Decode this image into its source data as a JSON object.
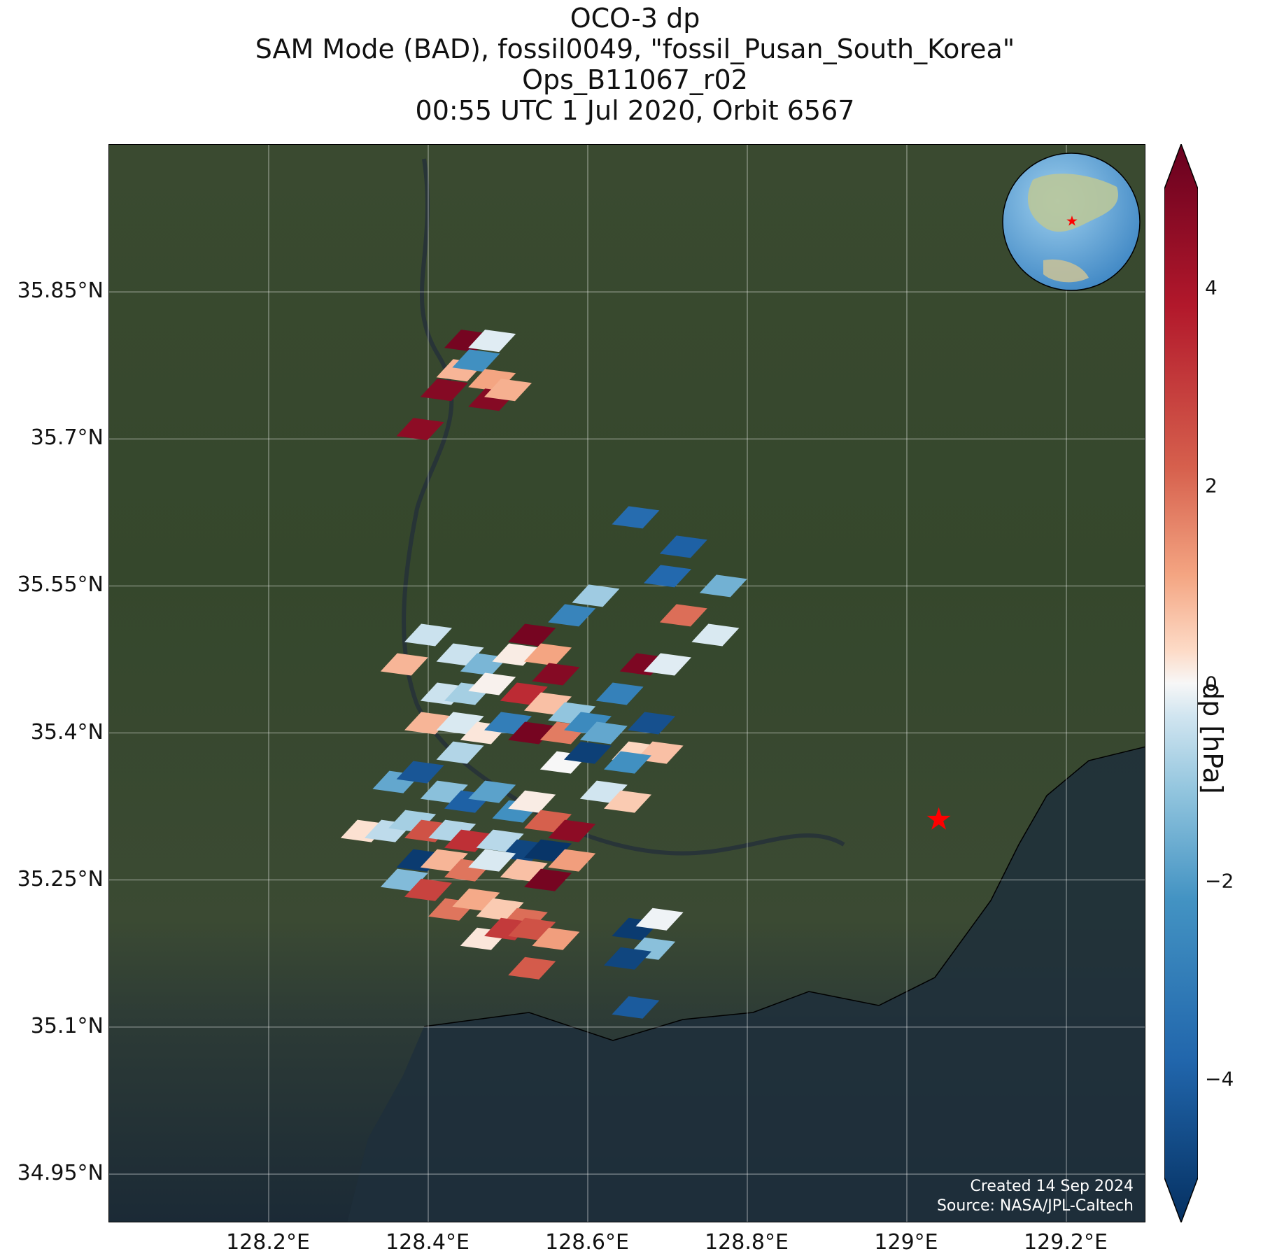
{
  "title": {
    "line1": "OCO-3 dp",
    "line2": "SAM Mode (BAD), fossil0049, \"fossil_Pusan_South_Korea\"",
    "line3": "Ops_B11067_r02",
    "line4": "00:55 UTC 1 Jul 2020, Orbit 6567"
  },
  "map": {
    "lon_range": [
      128.0,
      129.3
    ],
    "lat_range": [
      34.9,
      36.0
    ],
    "lon_ticks": [
      "128.2°E",
      "128.4°E",
      "128.6°E",
      "128.8°E",
      "129°E",
      "129.2°E"
    ],
    "lat_ticks": [
      "35.85°N",
      "35.7°N",
      "35.55°N",
      "35.4°N",
      "35.25°N",
      "35.1°N",
      "34.95°N"
    ],
    "grid": true,
    "target_marker": {
      "lon": 129.04,
      "lat": 35.31,
      "symbol": "red-star"
    },
    "inset_globe": "top-right",
    "credit_line1": "Created 14 Sep 2024",
    "credit_line2": "Source: NASA/JPL-Caltech"
  },
  "colorbar": {
    "label": "dp [hPa]",
    "ticks": [
      "4",
      "2",
      "0",
      "−2",
      "−4"
    ],
    "tick_values": [
      4,
      2,
      0,
      -2,
      -4
    ],
    "range": [
      -5,
      5
    ],
    "colormap": "RdBu_r",
    "extend": "both"
  },
  "chart_data": {
    "type": "scatter",
    "description_units": "lon (°E), lat (°N), dp (hPa)",
    "points": [
      {
        "lon": 128.39,
        "lat": 35.71,
        "dp": 4.5
      },
      {
        "lon": 128.42,
        "lat": 35.75,
        "dp": 4.6
      },
      {
        "lon": 128.44,
        "lat": 35.77,
        "dp": 1.2
      },
      {
        "lon": 128.45,
        "lat": 35.8,
        "dp": 4.8
      },
      {
        "lon": 128.46,
        "lat": 35.78,
        "dp": -2.6
      },
      {
        "lon": 128.48,
        "lat": 35.8,
        "dp": -0.3
      },
      {
        "lon": 128.48,
        "lat": 35.76,
        "dp": 1.5
      },
      {
        "lon": 128.48,
        "lat": 35.74,
        "dp": 4.6
      },
      {
        "lon": 128.5,
        "lat": 35.75,
        "dp": 1.3
      },
      {
        "lon": 128.66,
        "lat": 35.62,
        "dp": -3.8
      },
      {
        "lon": 128.72,
        "lat": 35.59,
        "dp": -4.1
      },
      {
        "lon": 128.7,
        "lat": 35.56,
        "dp": -3.9
      },
      {
        "lon": 128.77,
        "lat": 35.55,
        "dp": -1.9
      },
      {
        "lon": 128.61,
        "lat": 35.54,
        "dp": -1.3
      },
      {
        "lon": 128.58,
        "lat": 35.52,
        "dp": -3.0
      },
      {
        "lon": 128.72,
        "lat": 35.52,
        "dp": 2.3
      },
      {
        "lon": 128.76,
        "lat": 35.5,
        "dp": -0.4
      },
      {
        "lon": 128.67,
        "lat": 35.47,
        "dp": 4.7
      },
      {
        "lon": 128.7,
        "lat": 35.47,
        "dp": -0.3
      },
      {
        "lon": 128.64,
        "lat": 35.44,
        "dp": -3.1
      },
      {
        "lon": 128.68,
        "lat": 35.41,
        "dp": -4.4
      },
      {
        "lon": 128.4,
        "lat": 35.5,
        "dp": -0.6
      },
      {
        "lon": 128.37,
        "lat": 35.47,
        "dp": 1.2
      },
      {
        "lon": 128.44,
        "lat": 35.48,
        "dp": -0.6
      },
      {
        "lon": 128.47,
        "lat": 35.47,
        "dp": -1.8
      },
      {
        "lon": 128.51,
        "lat": 35.48,
        "dp": 0.2
      },
      {
        "lon": 128.53,
        "lat": 35.5,
        "dp": 4.8
      },
      {
        "lon": 128.55,
        "lat": 35.48,
        "dp": 1.5
      },
      {
        "lon": 128.56,
        "lat": 35.46,
        "dp": 4.6
      },
      {
        "lon": 128.42,
        "lat": 35.44,
        "dp": -0.6
      },
      {
        "lon": 128.45,
        "lat": 35.44,
        "dp": -1.2
      },
      {
        "lon": 128.48,
        "lat": 35.45,
        "dp": 0.1
      },
      {
        "lon": 128.52,
        "lat": 35.44,
        "dp": 3.6
      },
      {
        "lon": 128.55,
        "lat": 35.43,
        "dp": 1.0
      },
      {
        "lon": 128.58,
        "lat": 35.42,
        "dp": -1.5
      },
      {
        "lon": 128.4,
        "lat": 35.41,
        "dp": 1.2
      },
      {
        "lon": 128.44,
        "lat": 35.41,
        "dp": -0.4
      },
      {
        "lon": 128.47,
        "lat": 35.4,
        "dp": 0.3
      },
      {
        "lon": 128.5,
        "lat": 35.41,
        "dp": -3.2
      },
      {
        "lon": 128.53,
        "lat": 35.4,
        "dp": 4.8
      },
      {
        "lon": 128.57,
        "lat": 35.4,
        "dp": 2.1
      },
      {
        "lon": 128.6,
        "lat": 35.41,
        "dp": -2.8
      },
      {
        "lon": 128.62,
        "lat": 35.4,
        "dp": -2.1
      },
      {
        "lon": 128.57,
        "lat": 35.37,
        "dp": 0.0
      },
      {
        "lon": 128.6,
        "lat": 35.38,
        "dp": -4.7
      },
      {
        "lon": 128.66,
        "lat": 35.38,
        "dp": 0.6
      },
      {
        "lon": 128.69,
        "lat": 35.38,
        "dp": 1.0
      },
      {
        "lon": 128.65,
        "lat": 35.37,
        "dp": -2.6
      },
      {
        "lon": 128.44,
        "lat": 35.38,
        "dp": -1.0
      },
      {
        "lon": 128.36,
        "lat": 35.35,
        "dp": -2.1
      },
      {
        "lon": 128.39,
        "lat": 35.36,
        "dp": -4.3
      },
      {
        "lon": 128.42,
        "lat": 35.34,
        "dp": -1.6
      },
      {
        "lon": 128.45,
        "lat": 35.33,
        "dp": -4.1
      },
      {
        "lon": 128.48,
        "lat": 35.34,
        "dp": -2.2
      },
      {
        "lon": 128.51,
        "lat": 35.32,
        "dp": -2.6
      },
      {
        "lon": 128.53,
        "lat": 35.33,
        "dp": 0.2
      },
      {
        "lon": 128.55,
        "lat": 35.31,
        "dp": 2.5
      },
      {
        "lon": 128.58,
        "lat": 35.3,
        "dp": 4.5
      },
      {
        "lon": 128.62,
        "lat": 35.34,
        "dp": -0.5
      },
      {
        "lon": 128.65,
        "lat": 35.33,
        "dp": 0.8
      },
      {
        "lon": 128.32,
        "lat": 35.3,
        "dp": 0.4
      },
      {
        "lon": 128.35,
        "lat": 35.3,
        "dp": -0.8
      },
      {
        "lon": 128.38,
        "lat": 35.31,
        "dp": -1.2
      },
      {
        "lon": 128.4,
        "lat": 35.3,
        "dp": 2.8
      },
      {
        "lon": 128.43,
        "lat": 35.3,
        "dp": -1.0
      },
      {
        "lon": 128.45,
        "lat": 35.29,
        "dp": 3.5
      },
      {
        "lon": 128.49,
        "lat": 35.29,
        "dp": -0.9
      },
      {
        "lon": 128.52,
        "lat": 35.28,
        "dp": -4.6
      },
      {
        "lon": 128.55,
        "lat": 35.28,
        "dp": -4.9
      },
      {
        "lon": 128.58,
        "lat": 35.27,
        "dp": 1.6
      },
      {
        "lon": 128.39,
        "lat": 35.27,
        "dp": -4.8
      },
      {
        "lon": 128.42,
        "lat": 35.27,
        "dp": 1.2
      },
      {
        "lon": 128.45,
        "lat": 35.26,
        "dp": 2.2
      },
      {
        "lon": 128.48,
        "lat": 35.27,
        "dp": -0.4
      },
      {
        "lon": 128.52,
        "lat": 35.26,
        "dp": 1.0
      },
      {
        "lon": 128.55,
        "lat": 35.25,
        "dp": 4.8
      },
      {
        "lon": 128.37,
        "lat": 35.25,
        "dp": -1.7
      },
      {
        "lon": 128.4,
        "lat": 35.24,
        "dp": 3.1
      },
      {
        "lon": 128.43,
        "lat": 35.22,
        "dp": 2.2
      },
      {
        "lon": 128.46,
        "lat": 35.23,
        "dp": 1.4
      },
      {
        "lon": 128.49,
        "lat": 35.22,
        "dp": 0.8
      },
      {
        "lon": 128.52,
        "lat": 35.21,
        "dp": 2.3
      },
      {
        "lon": 128.47,
        "lat": 35.19,
        "dp": 0.3
      },
      {
        "lon": 128.5,
        "lat": 35.2,
        "dp": 3.3
      },
      {
        "lon": 128.53,
        "lat": 35.2,
        "dp": 2.8
      },
      {
        "lon": 128.56,
        "lat": 35.19,
        "dp": 1.6
      },
      {
        "lon": 128.53,
        "lat": 35.16,
        "dp": 2.6
      },
      {
        "lon": 128.66,
        "lat": 35.2,
        "dp": -4.8
      },
      {
        "lon": 128.69,
        "lat": 35.21,
        "dp": -0.1
      },
      {
        "lon": 128.68,
        "lat": 35.18,
        "dp": -1.6
      },
      {
        "lon": 128.65,
        "lat": 35.17,
        "dp": -4.6
      },
      {
        "lon": 128.66,
        "lat": 35.12,
        "dp": -4.2
      }
    ]
  }
}
